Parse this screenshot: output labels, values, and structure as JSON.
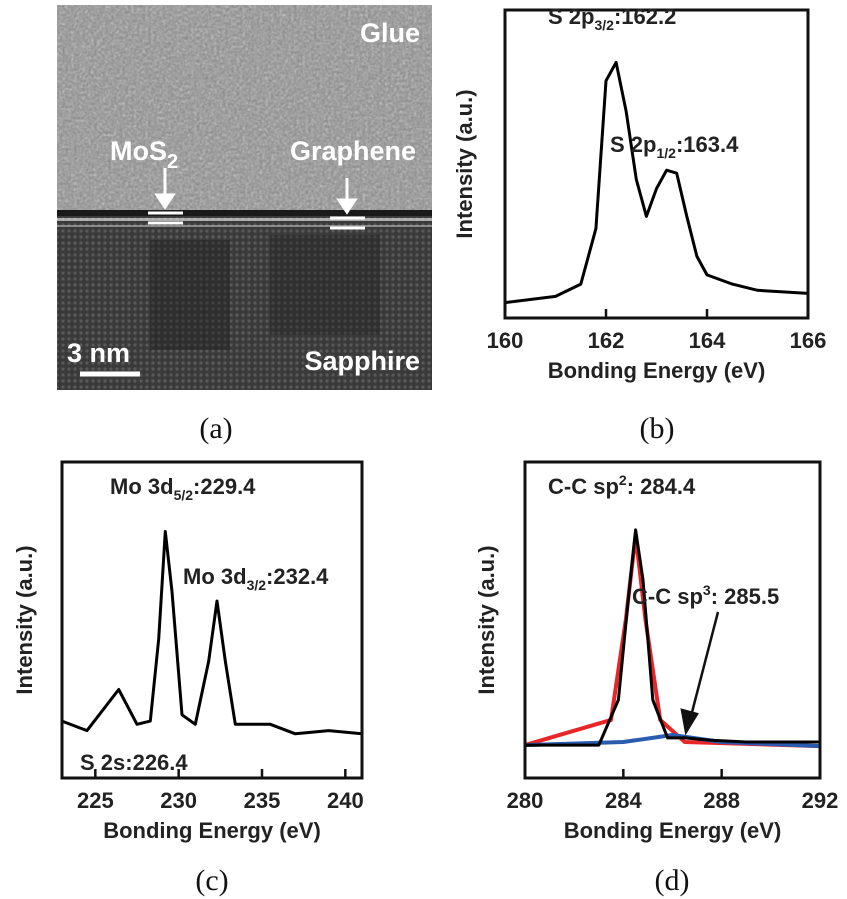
{
  "image": {
    "glue": "Glue",
    "mos": "MoS",
    "mos_sub": "2",
    "graphene": "Graphene",
    "scale": "3 nm",
    "sapphire": "Sapphire"
  },
  "panels": [
    "(a)",
    "(b)",
    "(c)",
    "(d)"
  ],
  "chart_data": [
    {
      "type": "line",
      "ylabel": "Intensity (a.u.)",
      "xlabel": "Bonding Energy (eV)",
      "xlim": [
        160,
        166
      ],
      "xticks": [
        160,
        162,
        164,
        166
      ],
      "ylim": [
        0,
        1
      ],
      "annotations": [
        {
          "text": "S 2p",
          "sub": "3/2",
          "tail": ":162.2"
        },
        {
          "text": "S 2p",
          "sub": "1/2",
          "tail": ":163.4"
        }
      ],
      "series": [
        {
          "color": "#000000",
          "x": [
            160,
            161,
            161.5,
            161.8,
            162.0,
            162.2,
            162.4,
            162.6,
            162.8,
            163.0,
            163.2,
            163.4,
            163.6,
            163.8,
            164.0,
            164.5,
            165,
            166
          ],
          "values": [
            0.05,
            0.07,
            0.11,
            0.29,
            0.77,
            0.83,
            0.67,
            0.45,
            0.33,
            0.42,
            0.48,
            0.47,
            0.33,
            0.2,
            0.14,
            0.11,
            0.09,
            0.08
          ]
        }
      ]
    },
    {
      "type": "line",
      "ylabel": "Intensity (a.u.)",
      "xlabel": "Bonding Energy (eV)",
      "xlim": [
        223,
        241
      ],
      "xticks": [
        225,
        230,
        235,
        240
      ],
      "ylim": [
        0,
        1
      ],
      "annotations": [
        {
          "text": "Mo 3d",
          "sub": "5/2",
          "tail": ":229.4"
        },
        {
          "text": "Mo 3d",
          "sub": "3/2",
          "tail": ":232.4"
        },
        {
          "text": "S 2s:226.4"
        }
      ],
      "series": [
        {
          "color": "#000000",
          "x": [
            223,
            224.5,
            226.4,
            227.5,
            228.3,
            228.8,
            229.2,
            229.6,
            230.2,
            231,
            231.8,
            232.3,
            232.8,
            233.4,
            235.5,
            237,
            239,
            241
          ],
          "values": [
            0.18,
            0.15,
            0.28,
            0.17,
            0.18,
            0.44,
            0.78,
            0.59,
            0.2,
            0.17,
            0.37,
            0.56,
            0.37,
            0.17,
            0.17,
            0.14,
            0.15,
            0.14
          ]
        }
      ]
    },
    {
      "type": "line",
      "ylabel": "Intensity (a.u.)",
      "xlabel": "Bonding Energy (eV)",
      "xlim": [
        280,
        292
      ],
      "xticks": [
        280,
        284,
        288,
        292
      ],
      "ylim": [
        0,
        1
      ],
      "annotations": [
        {
          "text": "C-C sp",
          "sup": "2",
          "tail": ": 284.4"
        },
        {
          "text": "C-C sp",
          "sup": "3",
          "tail": ": 285.5"
        }
      ],
      "series": [
        {
          "color": "#e8262a",
          "x": [
            280,
            283.5,
            284.1,
            284.5,
            284.9,
            285.5,
            286.5,
            292
          ],
          "values": [
            0.104,
            0.184,
            0.5,
            0.769,
            0.5,
            0.184,
            0.114,
            0.101
          ]
        },
        {
          "color": "#2a5db0",
          "x": [
            280,
            284,
            286,
            288,
            292
          ],
          "values": [
            0.104,
            0.114,
            0.136,
            0.114,
            0.101
          ]
        },
        {
          "color": "#000000",
          "x": [
            280,
            283,
            283.8,
            284.2,
            284.5,
            284.8,
            285.2,
            285.8,
            286.5,
            287.5,
            289,
            292
          ],
          "values": [
            0.104,
            0.104,
            0.247,
            0.563,
            0.785,
            0.627,
            0.247,
            0.127,
            0.127,
            0.12,
            0.114,
            0.114
          ]
        }
      ]
    }
  ]
}
